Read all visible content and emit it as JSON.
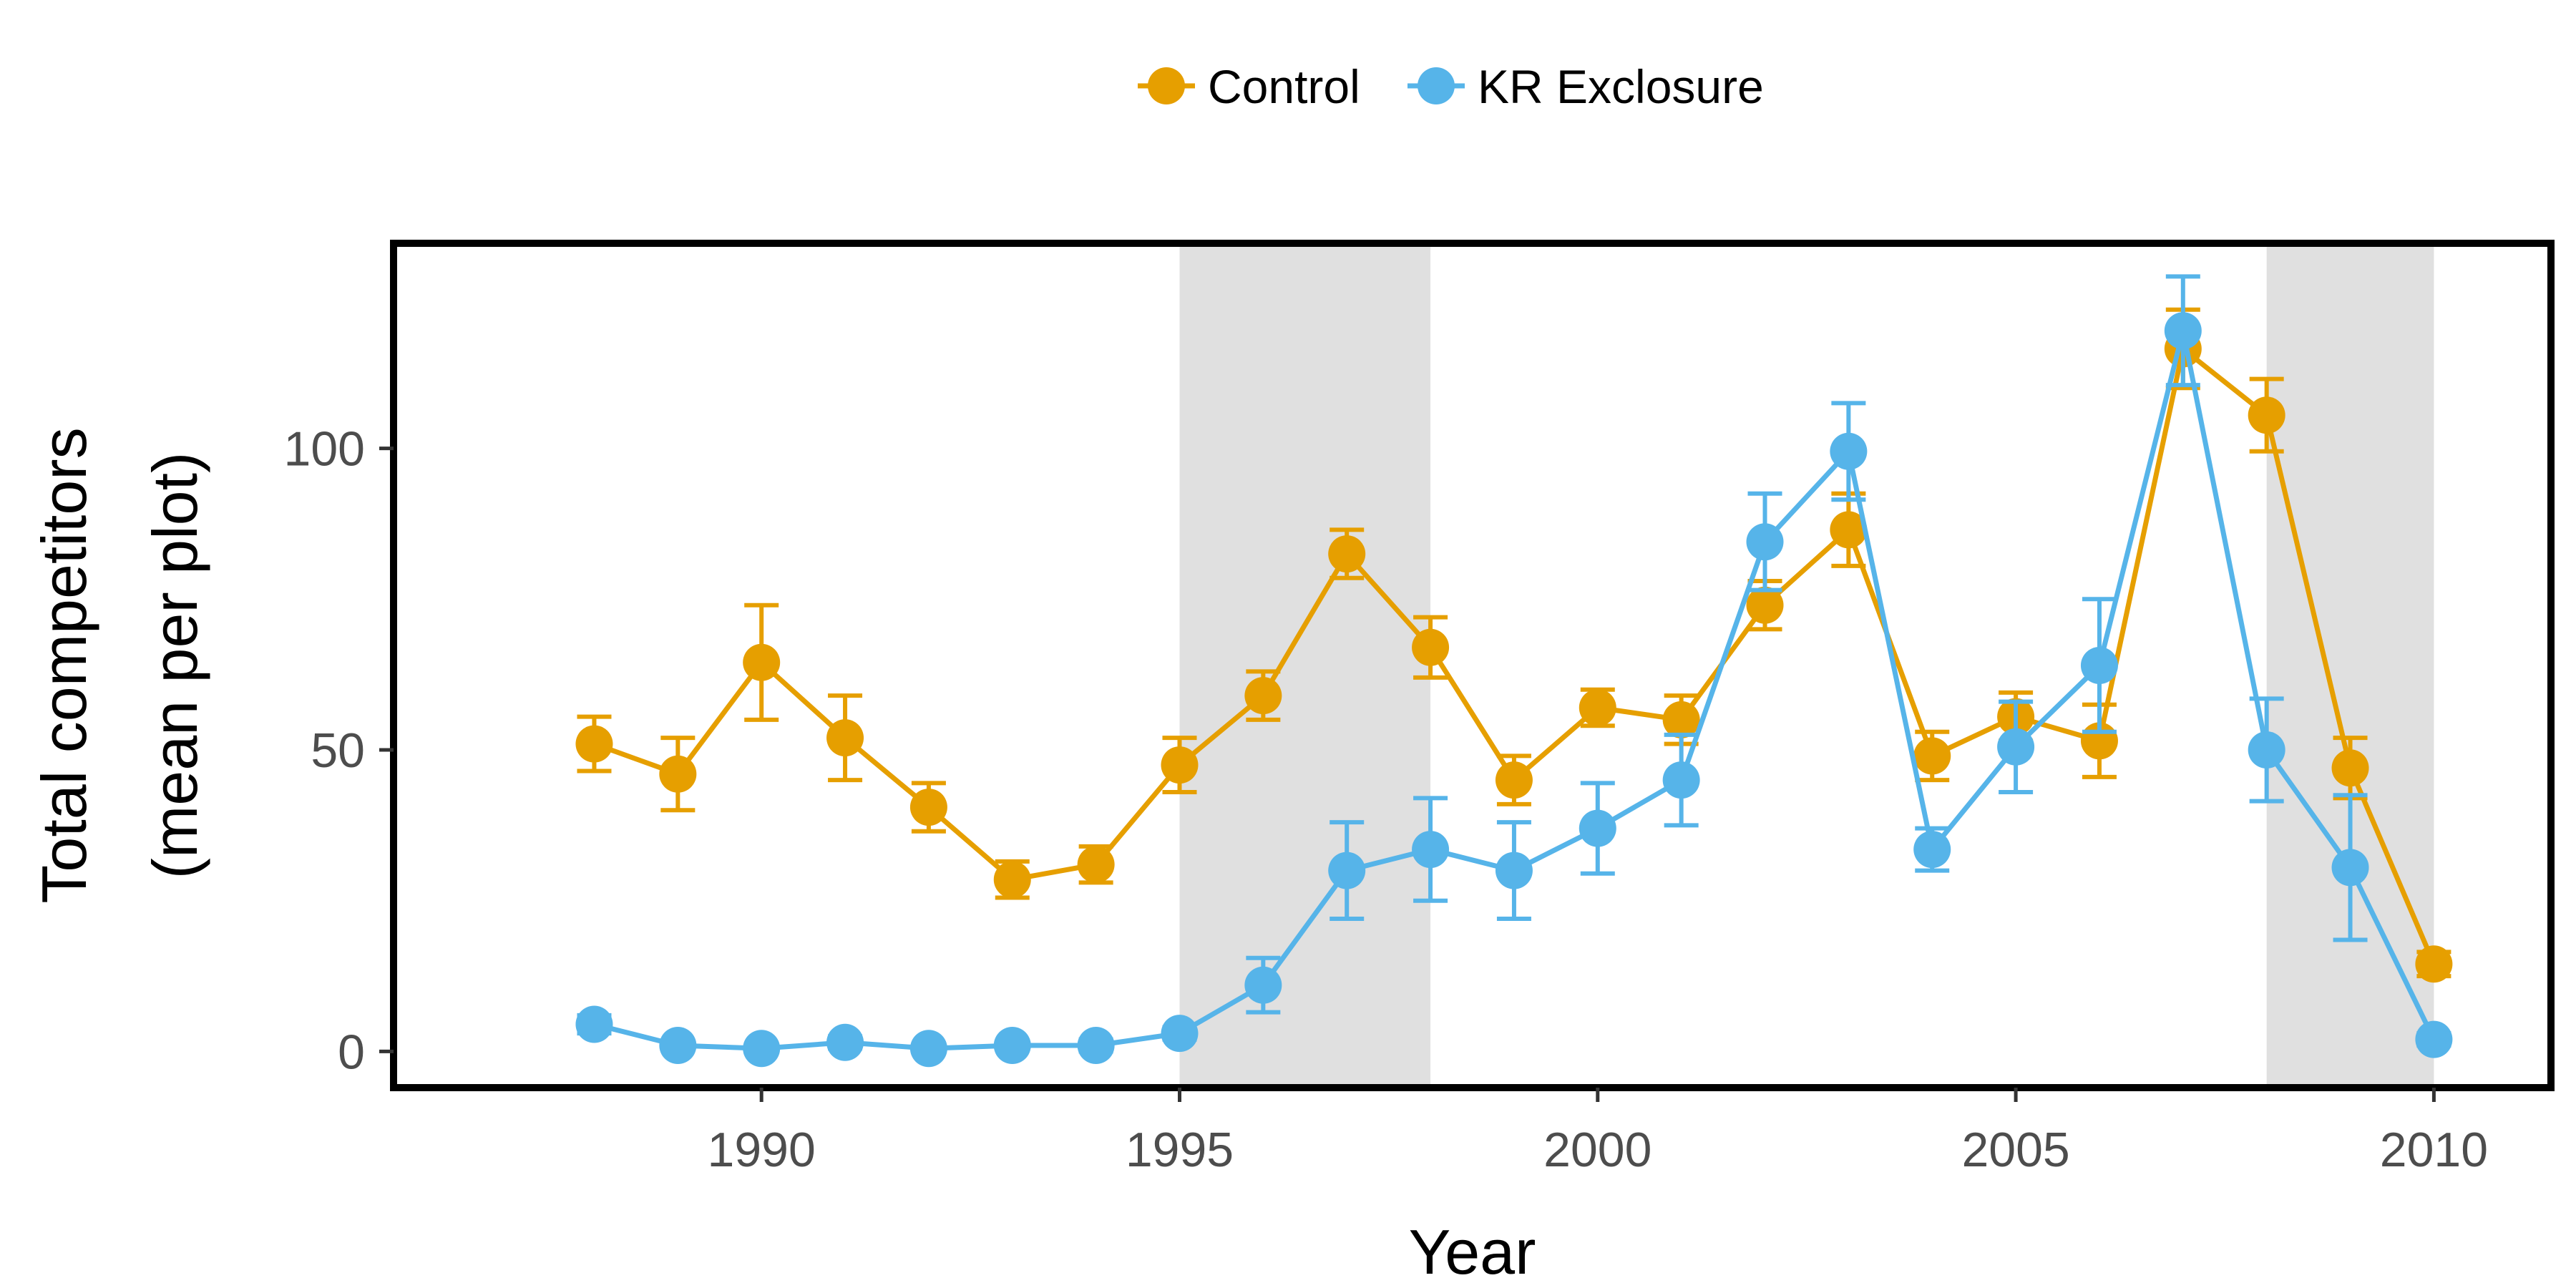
{
  "chart_data": {
    "type": "line",
    "xlabel": "Year",
    "ylabel": "Total competitors",
    "ylabel2": "(mean per plot)",
    "x": [
      1988,
      1989,
      1990,
      1991,
      1992,
      1993,
      1994,
      1995,
      1996,
      1997,
      1998,
      1999,
      2000,
      2001,
      2002,
      2003,
      2004,
      2005,
      2006,
      2007,
      2008,
      2009,
      2010
    ],
    "xlim": [
      1985.6,
      2011.4
    ],
    "ylim": [
      -6,
      134
    ],
    "xticks": [
      1990,
      1995,
      2000,
      2005,
      2010
    ],
    "yticks": [
      0,
      50,
      100
    ],
    "shaded_regions": [
      [
        1995,
        1998
      ],
      [
        2008,
        2010
      ]
    ],
    "grid": false,
    "legend_position": "top",
    "series": [
      {
        "name": "Control",
        "color": "#E69F00",
        "values": [
          51,
          46,
          64.5,
          52,
          40.5,
          28.5,
          31,
          47.5,
          59,
          82.5,
          67,
          45,
          57,
          55,
          74,
          86.5,
          49,
          55.5,
          51.5,
          116.5,
          105.5,
          47,
          14.5
        ],
        "error": [
          4.5,
          6,
          9.5,
          7,
          4,
          3,
          3,
          4.5,
          4,
          4,
          5,
          4,
          3,
          4,
          4,
          6,
          4,
          4,
          6,
          6.5,
          6,
          5,
          2
        ]
      },
      {
        "name": "KR Exclosure",
        "color": "#56B4E9",
        "values": [
          4.5,
          1,
          0.5,
          1.5,
          0.5,
          1,
          1,
          3,
          11,
          30,
          33.5,
          30,
          37,
          45,
          84.5,
          99.5,
          33.5,
          50.5,
          64,
          119.5,
          50,
          30.5,
          2
        ],
        "error": [
          1.5,
          0.5,
          0.5,
          1,
          0.5,
          0.5,
          1,
          1,
          4.5,
          8,
          8.5,
          8,
          7.5,
          7.5,
          8,
          8,
          3.5,
          7.5,
          11,
          9,
          8.5,
          12,
          1
        ]
      }
    ]
  }
}
